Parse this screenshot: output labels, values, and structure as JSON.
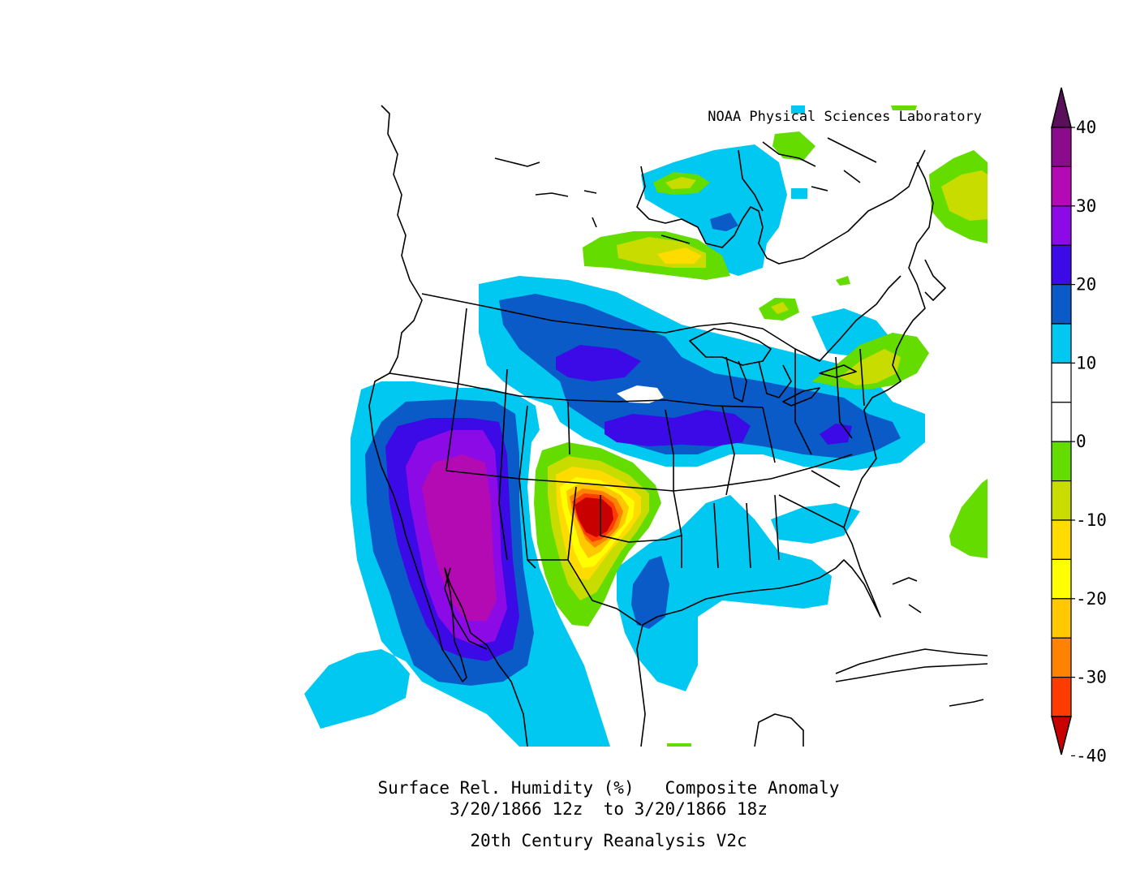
{
  "credit": "NOAA Physical Sciences Laboratory",
  "caption": {
    "line1": "Surface Rel. Humidity (%)   Composite Anomaly",
    "line2": "3/20/1866 12z  to 3/20/1866 18z",
    "line3": "20th Century Reanalysis V2c"
  },
  "colorbar": {
    "ticks": [
      "40",
      "30",
      "20",
      "10",
      "0",
      "-10",
      "-20",
      "-30",
      "-40"
    ],
    "levels": [
      {
        "range": ">35",
        "color": "#5a0f5a"
      },
      {
        "range": "30 to 35",
        "color": "#8c0a8c"
      },
      {
        "range": "25 to 30",
        "color": "#b40ab4"
      },
      {
        "range": "20 to 25",
        "color": "#8c0ae6"
      },
      {
        "range": "15 to 20",
        "color": "#3c0ae6"
      },
      {
        "range": "10 to 15",
        "color": "#0a5ac8"
      },
      {
        "range": "5 to 10",
        "color": "#00c8f0"
      },
      {
        "range": "0 to 5",
        "color": "#ffffff"
      },
      {
        "range": "-5 to 0",
        "color": "#ffffff"
      },
      {
        "range": "-10 to -5",
        "color": "#64dc00"
      },
      {
        "range": "-15 to -10",
        "color": "#c8dc00"
      },
      {
        "range": "-20 to -15",
        "color": "#ffdc00"
      },
      {
        "range": "-25 to -20",
        "color": "#ffff00"
      },
      {
        "range": "-30 to -25",
        "color": "#ffc800"
      },
      {
        "range": "-35 to -30",
        "color": "#ff8200"
      },
      {
        "range": "-40 to -35",
        "color": "#ff3c00"
      },
      {
        "range": "<-40",
        "color": "#c80000"
      }
    ]
  },
  "colors": {
    "white": "#ffffff",
    "cyan": "#00c8f0",
    "blue": "#0a5ac8",
    "indigo": "#3c0ae6",
    "violet": "#8c0ae6",
    "purple": "#b40ab4",
    "dark_purple": "#8c0a8c",
    "green": "#64dc00",
    "yellow_green": "#c8dc00",
    "gold": "#ffdc00",
    "yellow": "#ffff00",
    "light_orange": "#ffc800",
    "orange": "#ff8200",
    "red_orange": "#ff3c00",
    "dark_red": "#c80000",
    "outline": "#000000"
  }
}
